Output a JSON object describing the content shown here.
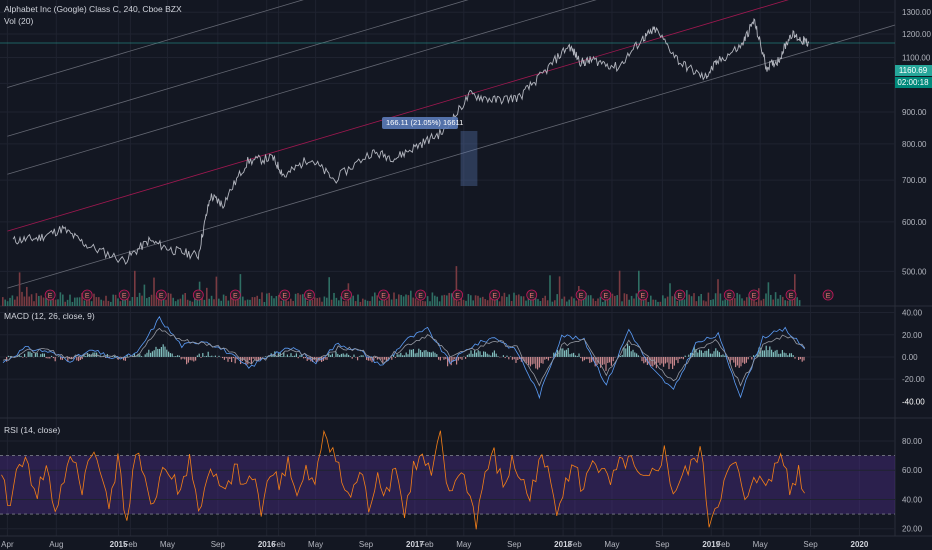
{
  "header": {
    "symbol_line": "Alphabet Inc (Google) Class C, 240, Cboe BZX",
    "volume_line": "Vol (20)"
  },
  "macd_legend": "MACD (12, 26, close, 9)",
  "rsi_legend": "RSI (14, close)",
  "last_price": "1160.69",
  "countdown": "02:00:18",
  "measure_label": "166.11 (21.05%) 16611",
  "earnings_marker": "E",
  "colors": {
    "background": "#131722",
    "grid": "#1f2330",
    "axis_text": "#b2b5be",
    "price_line": "#b2b5be",
    "channel": "#787b86",
    "channel_mid": "#c2185b",
    "hline": "#26a69a",
    "vol_up": "#2f6f64",
    "vol_down": "#7a3b42",
    "macd_line": "#5b9cf6",
    "signal_line": "#9598a1",
    "hist_up": "#9ce7e4",
    "hist_down": "#f5a3a8",
    "rsi_line": "#f57f17",
    "rsi_band": "#4a2c83",
    "tag_green": "#26a69a",
    "tag_teal": "#00897b",
    "measure_fill": "#5b7bb8",
    "earnings": "#c2185b"
  },
  "chart_data": [
    {
      "panel": "price",
      "type": "line",
      "title": "Alphabet Inc (Google) Class C, 240, Cboe BZX",
      "x": [
        "2014-04",
        "2014-06",
        "2014-08",
        "2014-10",
        "2015-01",
        "2015-03",
        "2015-05",
        "2015-07",
        "2015-08",
        "2015-09",
        "2015-11",
        "2016-01",
        "2016-02",
        "2016-04",
        "2016-06",
        "2016-09",
        "2016-11",
        "2017-01",
        "2017-03",
        "2017-05",
        "2017-07",
        "2017-09",
        "2017-11",
        "2018-01",
        "2018-02",
        "2018-03",
        "2018-05",
        "2018-07",
        "2018-08",
        "2018-10",
        "2018-12",
        "2019-01",
        "2019-03",
        "2019-04",
        "2019-05",
        "2019-06",
        "2019-07",
        "2019-08",
        "2019-08-28"
      ],
      "values": [
        560,
        565,
        585,
        550,
        520,
        560,
        540,
        530,
        660,
        640,
        750,
        760,
        710,
        760,
        700,
        775,
        760,
        800,
        840,
        960,
        940,
        950,
        1040,
        1150,
        1080,
        1090,
        1060,
        1180,
        1220,
        1080,
        1020,
        1080,
        1150,
        1260,
        1060,
        1090,
        1200,
        1170,
        1160.69
      ],
      "y_ticks": [
        500,
        600,
        700,
        800,
        900,
        1000,
        1100,
        1200,
        1300
      ],
      "ylim": [
        440,
        1360
      ],
      "x_tick_labels": [
        "Apr",
        "Aug",
        "2015",
        "Feb",
        "May",
        "Sep",
        "2016",
        "Feb",
        "May",
        "Sep",
        "2017",
        "Feb",
        "May",
        "Sep",
        "2018",
        "Feb",
        "May",
        "Sep",
        "2019",
        "Feb",
        "May",
        "Sep",
        "2020"
      ],
      "last_value": 1160.69,
      "horizontal_line": 1160.69,
      "measurement": {
        "from": "2017-04",
        "to": "2017-05",
        "change": 166.11,
        "change_pct": 21.05
      },
      "volume_series": "Vol (20)",
      "earnings_markers": [
        "2014-07",
        "2014-10",
        "2015-01",
        "2015-04",
        "2015-07",
        "2015-10",
        "2016-02",
        "2016-04",
        "2016-07",
        "2016-10",
        "2017-01",
        "2017-04",
        "2017-07",
        "2017-10",
        "2018-02",
        "2018-04",
        "2018-07",
        "2018-10",
        "2019-02",
        "2019-04",
        "2019-07",
        "2019-10"
      ],
      "grid": true
    },
    {
      "panel": "macd",
      "type": "line",
      "title": "MACD (12, 26, close, 9)",
      "series": [
        {
          "name": "MACD",
          "values": [
            -5,
            8,
            5,
            -3,
            6,
            -2,
            3,
            35,
            10,
            15,
            5,
            -10,
            3,
            8,
            -5,
            12,
            5,
            -8,
            15,
            25,
            -5,
            10,
            18,
            5,
            -35,
            20,
            15,
            -25,
            25,
            -10,
            -30,
            12,
            20,
            -35,
            18,
            25,
            5
          ]
        },
        {
          "name": "Signal",
          "values": [
            -3,
            5,
            6,
            -1,
            3,
            0,
            2,
            25,
            15,
            12,
            8,
            -5,
            0,
            6,
            -2,
            8,
            6,
            -4,
            10,
            20,
            2,
            6,
            15,
            8,
            -25,
            10,
            17,
            -15,
            15,
            -2,
            -22,
            5,
            15,
            -25,
            10,
            20,
            8
          ]
        }
      ],
      "y_ticks": [
        -20,
        0,
        20,
        40
      ],
      "ylim": [
        -55,
        45
      ],
      "extra_tick": -40,
      "grid": true
    },
    {
      "panel": "rsi",
      "type": "line",
      "title": "RSI (14, close)",
      "values": [
        52,
        35,
        70,
        60,
        45,
        62,
        32,
        55,
        68,
        48,
        75,
        58,
        40,
        66,
        25,
        72,
        50,
        38,
        62,
        55,
        45,
        70,
        30,
        58,
        52,
        42,
        62,
        48,
        56,
        35,
        60,
        50,
        68,
        40,
        58,
        48,
        88,
        75,
        52,
        40,
        60,
        35,
        58,
        45,
        65,
        28,
        62,
        68,
        55,
        82,
        40,
        60,
        50,
        25,
        58,
        70,
        48,
        65,
        55,
        40,
        68,
        58,
        35,
        55,
        62,
        45,
        70,
        58,
        50,
        62,
        68,
        55,
        50,
        60,
        72,
        45,
        55,
        62,
        75,
        25,
        40,
        55,
        65,
        35,
        60,
        48,
        55,
        78,
        45,
        60,
        38
      ],
      "y_ticks": [
        20,
        40,
        60,
        80
      ],
      "ylim": [
        15,
        95
      ],
      "upper_band": 70,
      "lower_band": 30,
      "grid": true
    }
  ]
}
